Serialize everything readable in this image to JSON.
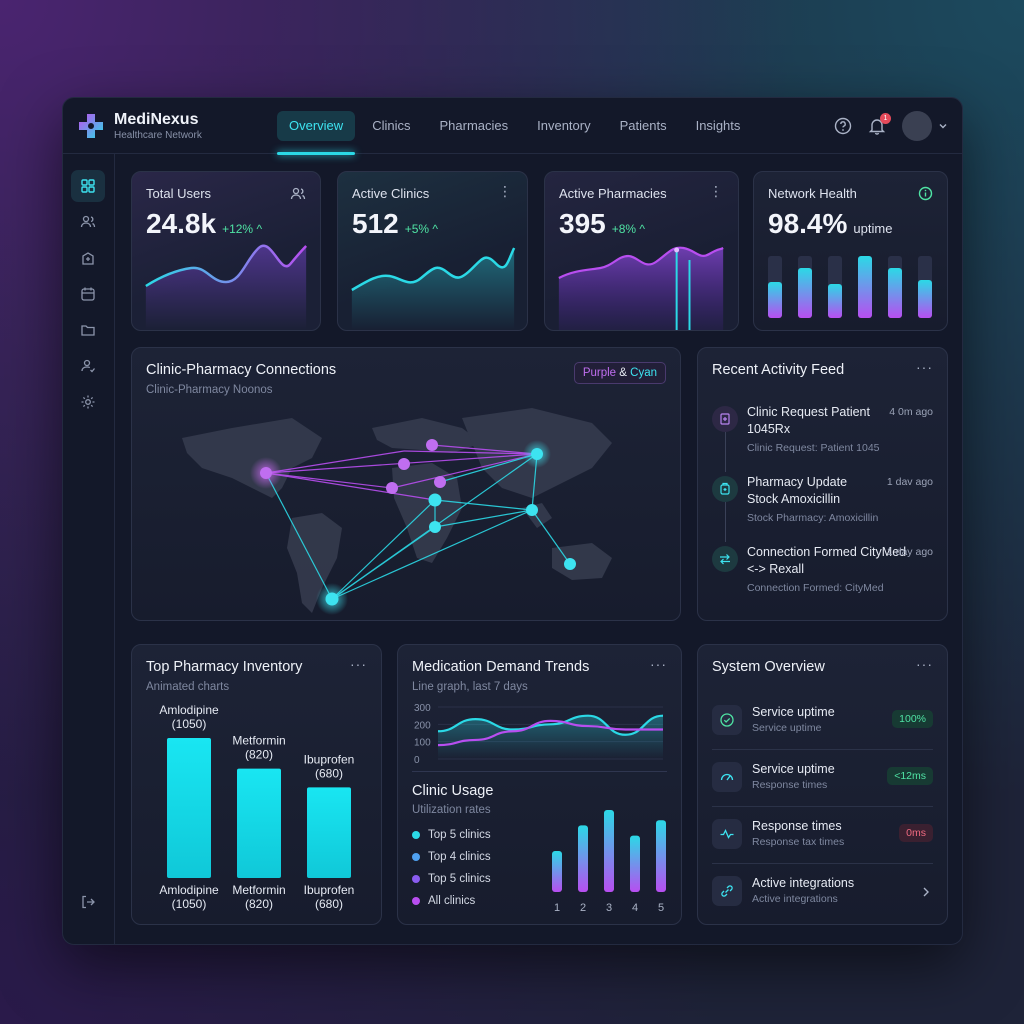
{
  "brand": {
    "name": "MediNexus",
    "subtitle": "Healthcare Network"
  },
  "nav": {
    "tabs": [
      "Overview",
      "Clinics",
      "Pharmacies",
      "Inventory",
      "Patients",
      "Insights"
    ],
    "active": "Overview"
  },
  "notifications": {
    "count": "1"
  },
  "stats": [
    {
      "title": "Total Users",
      "value": "24.8k",
      "delta": "+12% ^",
      "icon": "users-icon"
    },
    {
      "title": "Active Clinics",
      "value": "512",
      "delta": "+5% ^",
      "icon": "more-icon"
    },
    {
      "title": "Active Pharmacies",
      "value": "395",
      "delta": "+8% ^",
      "icon": "more-icon"
    },
    {
      "title": "Network Health",
      "value": "98.4%",
      "unit": "uptime",
      "icon": "info-icon"
    }
  ],
  "map": {
    "title": "Clinic-Pharmacy Connections",
    "subtitle": "Clinic-Pharmacy Noonos",
    "pill_a": "Purple",
    "pill_amp": "&",
    "pill_b": "Cyan"
  },
  "feed": {
    "title": "Recent Activity Feed",
    "items": [
      {
        "title": "Clinic Request Patient 1045Rx",
        "sub": "Clinic Request: Patient 1045",
        "time": "4 0m ago",
        "icon": "clinic-icon"
      },
      {
        "title": "Pharmacy Update Stock Amoxicillin",
        "sub": "Stock Pharmacy: Amoxicillin",
        "time": "1 dav ago",
        "icon": "pharmacy-icon"
      },
      {
        "title": "Connection Formed CityMed <-> Rexall",
        "sub": "Connection Formed: CityMed",
        "time": "1 day ago",
        "icon": "swap-icon"
      }
    ]
  },
  "inventory": {
    "title": "Top Pharmacy Inventory",
    "subtitle": "Animated charts",
    "chart_data": {
      "type": "bar",
      "categories": [
        "Amlodipine",
        "Metformin",
        "Ibuprofen"
      ],
      "values": [
        1050,
        820,
        680
      ],
      "top_labels": [
        "Amlodipine (1050)",
        "Metformin (820)",
        "Ibuprofen (680)"
      ],
      "bottom_labels": [
        "Amlodipine (1050)",
        "Metformin (820)",
        "Ibuprofen (680)"
      ],
      "color": "#19e6f2"
    }
  },
  "demand": {
    "title": "Medication Demand Trends",
    "subtitle": "Line graph, last 7 days",
    "chart_data": {
      "type": "line",
      "yticks": [
        "300",
        "200",
        "100",
        "0"
      ],
      "ylim": [
        0,
        300
      ],
      "series": [
        {
          "values": [
            160,
            230,
            170,
            200,
            250,
            140,
            250
          ],
          "color": "#2bd9e6"
        },
        {
          "values": [
            80,
            110,
            160,
            220,
            190,
            170,
            170
          ],
          "color": "#b84ef0"
        }
      ]
    }
  },
  "usage": {
    "title": "Clinic Usage",
    "subtitle": "Utilization rates",
    "legend": [
      {
        "label": "Top 5 clinics",
        "color": "#2bd9e6"
      },
      {
        "label": "Top 4 clinics",
        "color": "#4fa0f0"
      },
      {
        "label": "Top 5 clinics",
        "color": "#8a5cf0"
      },
      {
        "label": "All clinics",
        "color": "#b84ef0"
      }
    ],
    "chart_data": {
      "type": "bar",
      "categories": [
        "1",
        "2",
        "3",
        "4",
        "5"
      ],
      "values": [
        40,
        65,
        80,
        55,
        70
      ]
    }
  },
  "system": {
    "title": "System Overview",
    "rows": [
      {
        "title": "Service uptime",
        "sub": "Service uptime",
        "badge": "100%",
        "badge_kind": "green",
        "icon": "check-circle-icon"
      },
      {
        "title": "Service uptime",
        "sub": "Response times",
        "badge": "<12ms",
        "badge_kind": "green",
        "icon": "gauge-icon"
      },
      {
        "title": "Response times",
        "sub": "Response tax times",
        "badge": "0ms",
        "badge_kind": "red",
        "icon": "pulse-icon"
      },
      {
        "title": "Active integrations",
        "sub": "Active integrations",
        "badge": "",
        "badge_kind": "chevron",
        "icon": "link-icon"
      }
    ]
  },
  "menu_glyph": "···"
}
